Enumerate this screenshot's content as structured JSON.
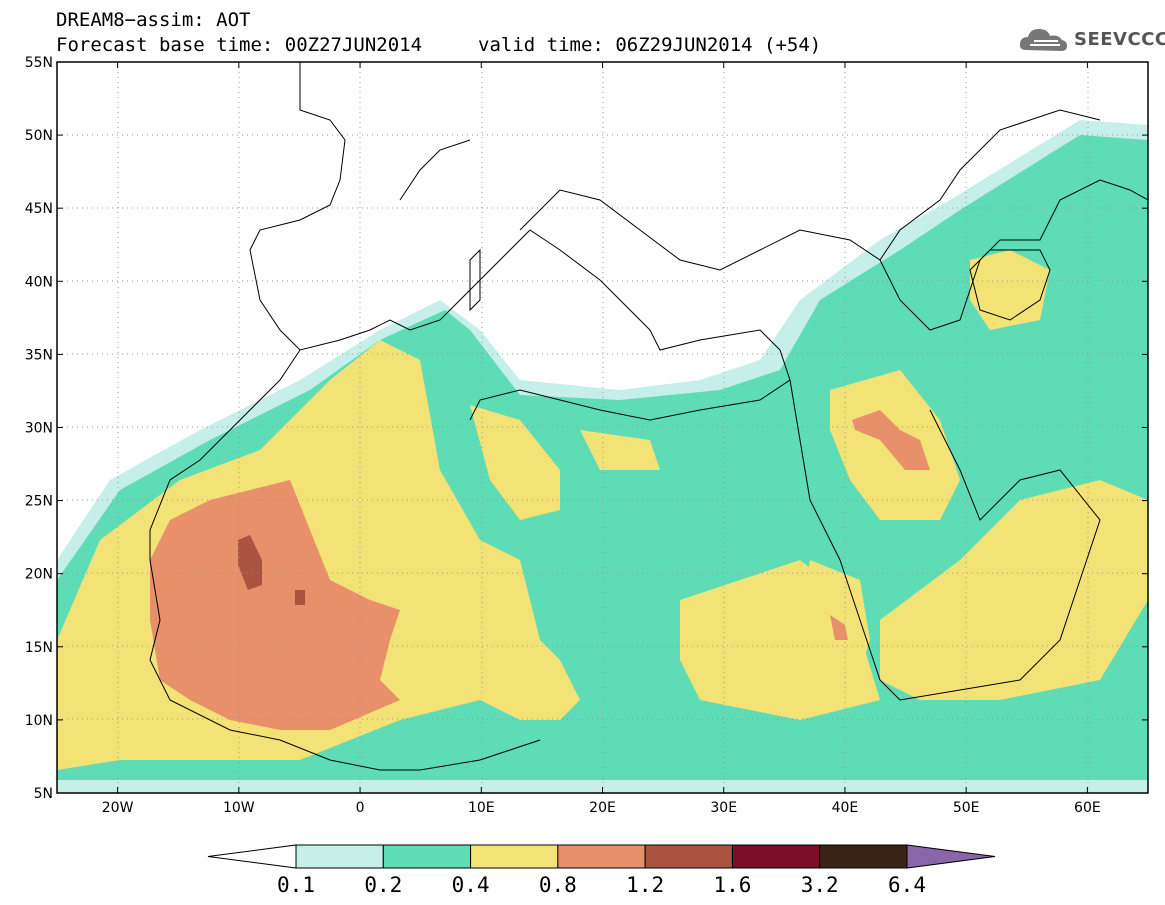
{
  "header": {
    "line1": "DREAM8−assim: AOT",
    "base_time": "Forecast base time: 00Z27JUN2014",
    "valid_time": "valid time: 06Z29JUN2014 (+54)"
  },
  "logo": {
    "text": "SEEVCCC",
    "icon": "cloud-icon"
  },
  "map": {
    "lat_ticks": [
      "55N",
      "50N",
      "45N",
      "40N",
      "35N",
      "30N",
      "25N",
      "20N",
      "15N",
      "10N",
      "5N"
    ],
    "lon_ticks": [
      "20W",
      "10W",
      "0",
      "10E",
      "20E",
      "30E",
      "40E",
      "50E",
      "60E"
    ],
    "lat_range": [
      5,
      55
    ],
    "lon_range": [
      -25,
      65
    ],
    "grid": "dotted"
  },
  "colorbar": {
    "labels": [
      "0.1",
      "0.2",
      "0.4",
      "0.8",
      "1.2",
      "1.6",
      "3.2",
      "6.4"
    ],
    "colors": [
      "#ffffff",
      "#c6efe9",
      "#5ddcb6",
      "#f3e276",
      "#e8906a",
      "#a95340",
      "#7a0f26",
      "#3b2318",
      "#8a66a9"
    ]
  }
}
